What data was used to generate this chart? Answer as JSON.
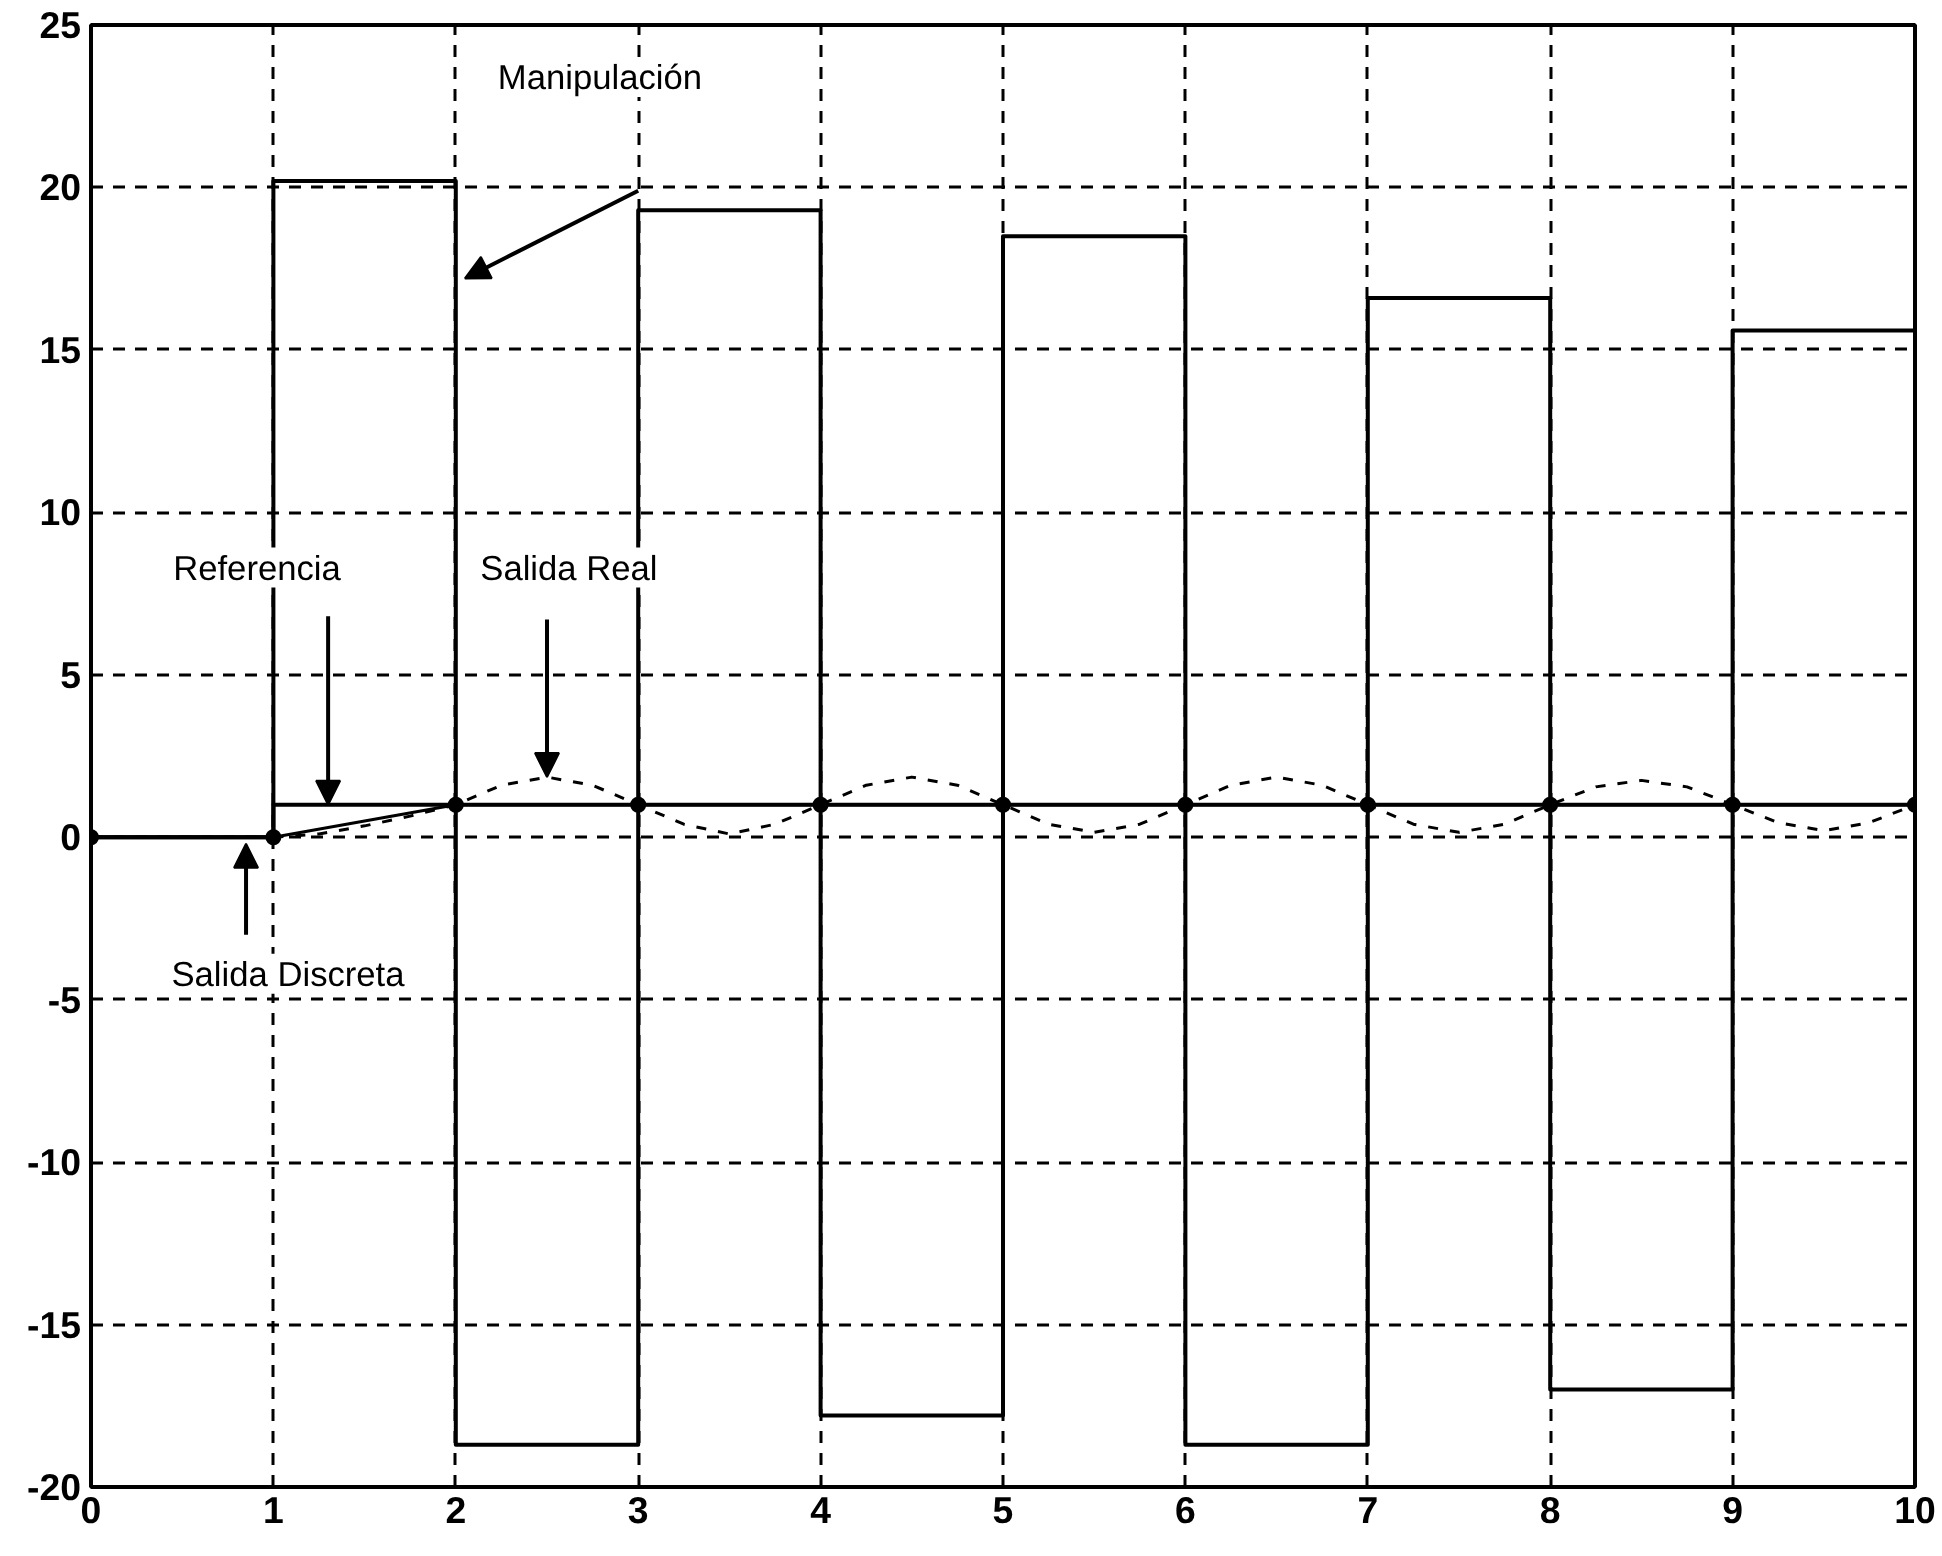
{
  "chart_data": {
    "type": "line",
    "xlim": [
      0,
      10
    ],
    "ylim": [
      -20,
      25
    ],
    "xticks": [
      0,
      1,
      2,
      3,
      4,
      5,
      6,
      7,
      8,
      9,
      10
    ],
    "yticks": [
      -20,
      -15,
      -10,
      -5,
      0,
      5,
      10,
      15,
      20,
      25
    ],
    "grid": true,
    "series": [
      {
        "type": "step",
        "color": "#000000",
        "line_style": "solid",
        "x": [
          0,
          1,
          2,
          3,
          4,
          5,
          6,
          7,
          8,
          9,
          10
        ],
        "values": [
          0,
          20.2,
          -18.7,
          19.3,
          -17.8,
          18.5,
          -18.7,
          16.6,
          -17.0,
          15.6,
          15.6
        ]
      },
      {
        "type": "step",
        "color": "#000000",
        "line_style": "solid",
        "x": [
          0,
          1,
          10
        ],
        "values": [
          0,
          1,
          1
        ]
      },
      {
        "color": "#000000",
        "line_style": "solid",
        "marker": "circle",
        "x": [
          0,
          1,
          2,
          3,
          4,
          5,
          6,
          7,
          8,
          9,
          10
        ],
        "values": [
          0,
          0,
          1,
          1,
          1,
          1,
          1,
          1,
          1,
          1,
          1
        ]
      },
      {
        "color": "#000000",
        "line_style": "dashed",
        "x": [
          1,
          1.25,
          1.5,
          1.75,
          2,
          2.25,
          2.5,
          2.75,
          3,
          3.25,
          3.5,
          3.75,
          4,
          4.25,
          4.5,
          4.75,
          5,
          5.25,
          5.5,
          5.75,
          6,
          6.25,
          6.5,
          6.75,
          7,
          7.25,
          7.5,
          7.75,
          8,
          8.25,
          8.5,
          8.75,
          9,
          9.25,
          9.5,
          9.75,
          10
        ],
        "values": [
          0,
          0.1,
          0.35,
          0.65,
          1,
          1.6,
          1.85,
          1.6,
          1,
          0.4,
          0.1,
          0.4,
          1,
          1.6,
          1.85,
          1.6,
          1,
          0.4,
          0.15,
          0.4,
          1,
          1.6,
          1.85,
          1.6,
          1,
          0.4,
          0.15,
          0.4,
          1,
          1.55,
          1.75,
          1.55,
          1,
          0.45,
          0.2,
          0.45,
          1
        ]
      }
    ],
    "annotations": [
      "Manipulación",
      {
        "text": "Referencia",
        "x": 1.3,
        "y": 1
      },
      {
        "text": "Salida Real",
        "x": 2.5,
        "y": 1.85
      },
      {
        "text": "Salida Discreta",
        "x": 0.85,
        "y": 0
      }
    ]
  }
}
